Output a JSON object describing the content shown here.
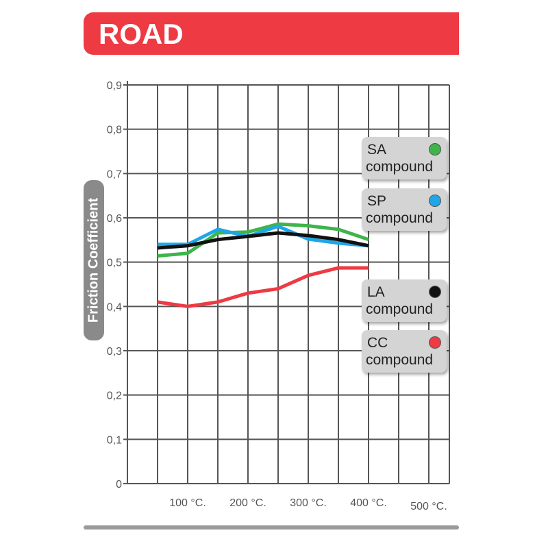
{
  "header": {
    "title": "ROAD"
  },
  "chart_data": {
    "type": "line",
    "title": "",
    "ylabel": "Friction Coefficient",
    "xlabel": "",
    "ylim": [
      0,
      0.9
    ],
    "xlim": [
      0,
      525
    ],
    "grid": true,
    "legend_placement": "right",
    "yticks": [
      "0,9",
      "0,8",
      "0,7",
      "0,6",
      "0,5",
      "0,4",
      "0,3",
      "0,2",
      "0,1",
      "0"
    ],
    "ytick_values": [
      0.9,
      0.8,
      0.7,
      0.6,
      0.5,
      0.4,
      0.3,
      0.2,
      0.1,
      0
    ],
    "xticks": [
      "100 °C.",
      "200 °C.",
      "300 °C.",
      "400 °C.",
      "500 °C."
    ],
    "xtick_values": [
      100,
      200,
      300,
      400,
      500
    ],
    "x": [
      50,
      100,
      150,
      200,
      250,
      300,
      350,
      400
    ],
    "series": [
      {
        "name": "SA",
        "label": "compound",
        "color": "#3db54a",
        "values": [
          0.514,
          0.52,
          0.566,
          0.568,
          0.586,
          0.582,
          0.574,
          0.551
        ]
      },
      {
        "name": "SP",
        "label": "compound",
        "color": "#1ea7e8",
        "values": [
          0.54,
          0.54,
          0.574,
          0.558,
          0.581,
          0.552,
          0.543,
          0.537
        ]
      },
      {
        "name": "LA",
        "label": "compound",
        "color": "#111111",
        "values": [
          0.532,
          0.537,
          0.551,
          0.558,
          0.566,
          0.56,
          0.551,
          0.537
        ]
      },
      {
        "name": "CC",
        "label": "compound",
        "color": "#ee3a43",
        "values": [
          0.41,
          0.4,
          0.41,
          0.43,
          0.44,
          0.47,
          0.487,
          0.487
        ]
      }
    ]
  }
}
